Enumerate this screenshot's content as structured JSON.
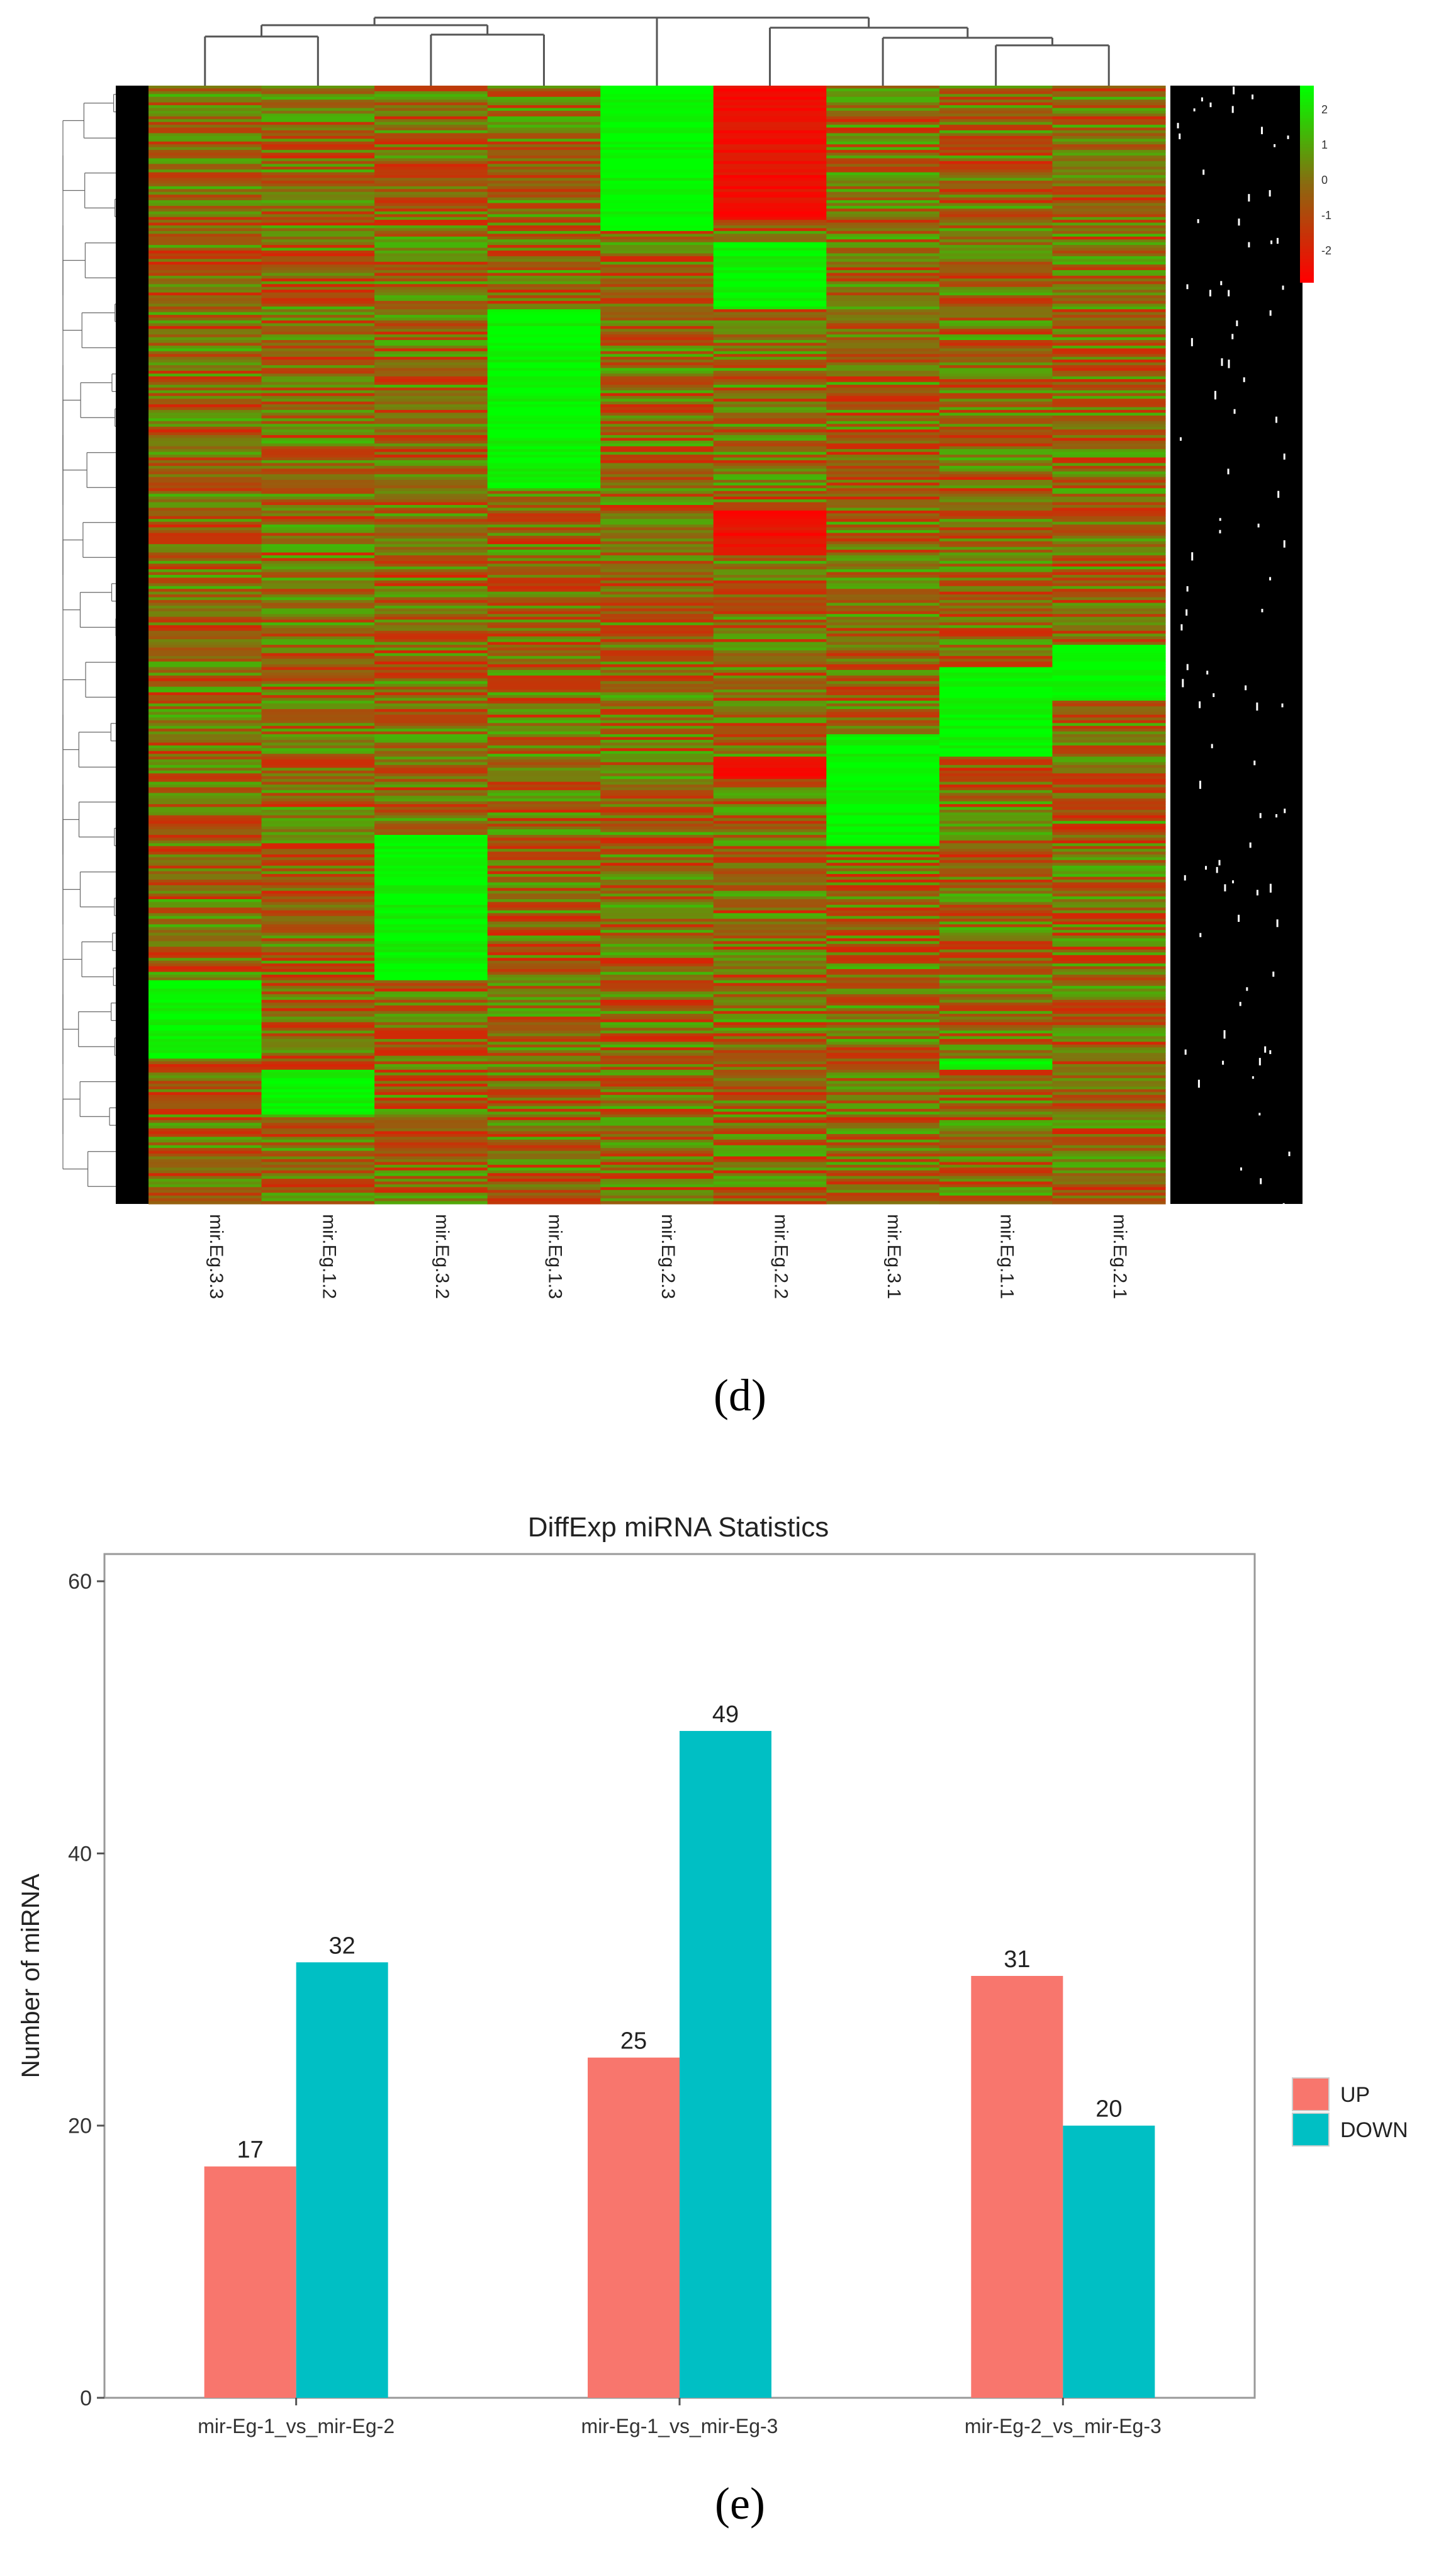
{
  "chart_data": [
    {
      "type": "heatmap",
      "panel_label": "(d)",
      "columns": [
        "mir.Eg.3.3",
        "mir.Eg.1.2",
        "mir.Eg.3.2",
        "mir.Eg.1.3",
        "mir.Eg.2.3",
        "mir.Eg.2.2",
        "mir.Eg.3.1",
        "mir.Eg.1.1",
        "mir.Eg.2.1"
      ],
      "color_scale": {
        "ticks": [
          "2",
          "1",
          "0",
          "-1",
          "-2"
        ],
        "colors": {
          "high": "#00ff00",
          "mid": "#8a6a10",
          "low": "#ff0000"
        }
      },
      "row_labels": "dense miRNA identifiers (illegible)"
    },
    {
      "type": "bar",
      "panel_label": "(e)",
      "title": "DiffExp miRNA Statistics",
      "xlabel": "",
      "ylabel": "Number of miRNA",
      "ylim": [
        0,
        62
      ],
      "yticks": [
        0,
        20,
        40,
        60
      ],
      "categories": [
        "mir-Eg-1_vs_mir-Eg-2",
        "mir-Eg-1_vs_mir-Eg-3",
        "mir-Eg-2_vs_mir-Eg-3"
      ],
      "series": [
        {
          "name": "UP",
          "color": "#f8766d",
          "values": [
            17,
            25,
            31
          ]
        },
        {
          "name": "DOWN",
          "color": "#00bfc4",
          "values": [
            32,
            49,
            20
          ]
        }
      ],
      "legend_position": "right"
    }
  ]
}
